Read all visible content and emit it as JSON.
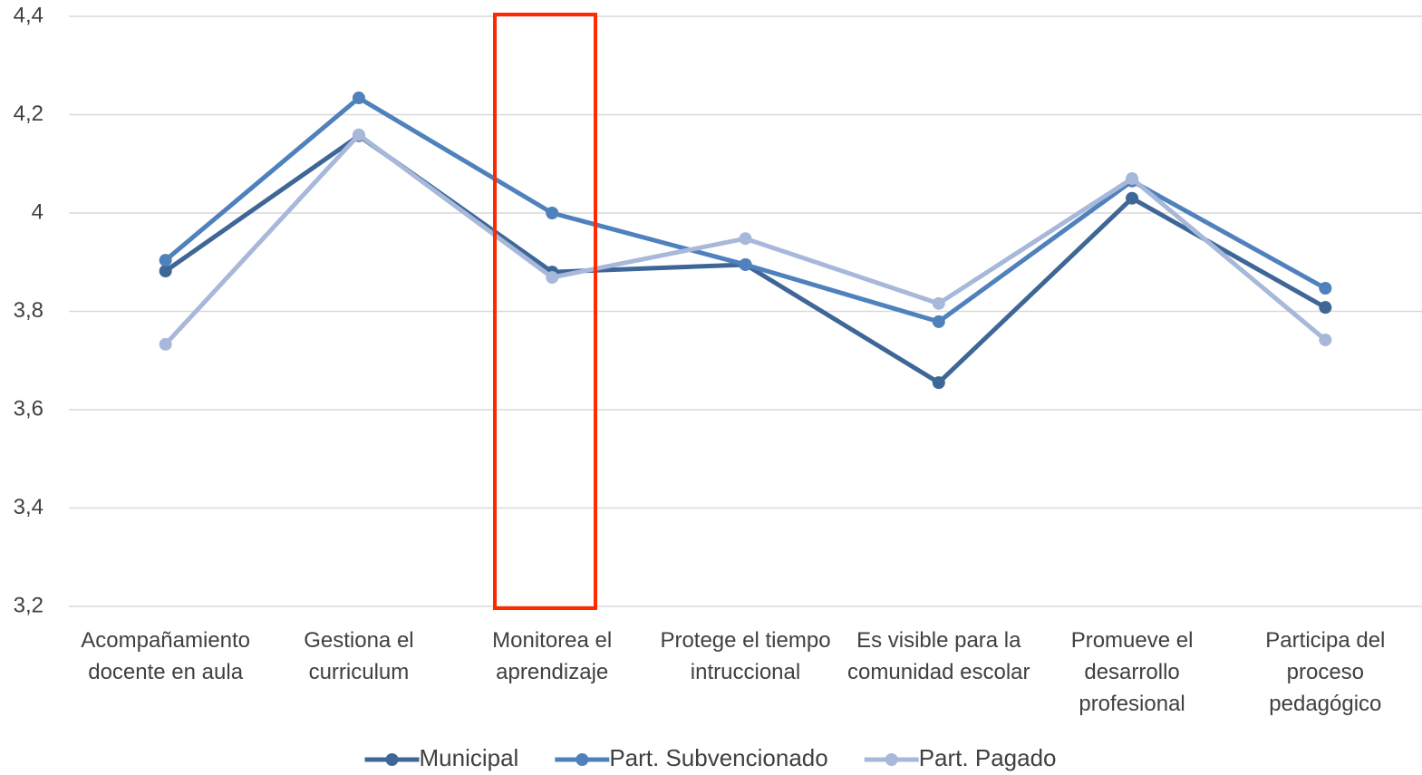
{
  "chart_data": {
    "type": "line",
    "categories": [
      "Acompañamiento docente en aula",
      "Gestiona el curriculum",
      "Monitorea el aprendizaje",
      "Protege el tiempo intruccional",
      "Es visible para la comunidad escolar",
      "Promueve el desarrollo profesional",
      "Participa del proceso pedagógico"
    ],
    "series": [
      {
        "name": "Municipal",
        "color": "#3e6696",
        "values": [
          3.882,
          4.157,
          3.88,
          3.895,
          3.655,
          4.03,
          3.808
        ]
      },
      {
        "name": "Part. Subvencionado",
        "color": "#4f81bd",
        "values": [
          3.904,
          4.234,
          4.0,
          3.895,
          3.779,
          4.065,
          3.847
        ]
      },
      {
        "name": "Part. Pagado",
        "color": "#a7b8da",
        "values": [
          3.733,
          4.159,
          3.869,
          3.948,
          3.816,
          4.07,
          3.742
        ]
      }
    ],
    "ylim": [
      3.2,
      4.4
    ],
    "yticks": [
      {
        "value": 3.2,
        "label": "3,2"
      },
      {
        "value": 3.4,
        "label": "3,4"
      },
      {
        "value": 3.6,
        "label": "3,6"
      },
      {
        "value": 3.8,
        "label": "3,8"
      },
      4,
      {
        "value": 4.2,
        "label": "4,2"
      },
      {
        "value": 4.4,
        "label": "4,4"
      }
    ],
    "grid": true,
    "legend": "bottom"
  }
}
